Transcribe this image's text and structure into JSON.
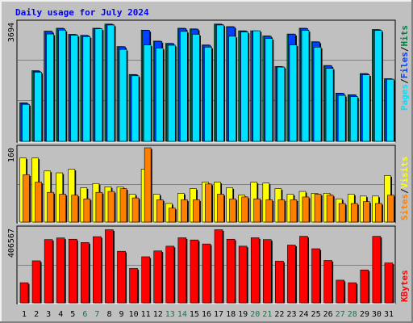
{
  "chart_data": {
    "type": "bar",
    "title": "Daily usage for July 2024",
    "categories": [
      "1",
      "2",
      "3",
      "4",
      "5",
      "6",
      "7",
      "8",
      "9",
      "10",
      "11",
      "12",
      "13",
      "14",
      "15",
      "16",
      "17",
      "18",
      "19",
      "20",
      "21",
      "22",
      "23",
      "24",
      "25",
      "26",
      "27",
      "28",
      "29",
      "30",
      "31"
    ],
    "weekend_days": [
      6,
      7,
      13,
      14,
      20,
      21,
      27,
      28
    ],
    "panels": [
      {
        "name": "hits-files-pages",
        "ymax_label": "3694",
        "ymax": 3694,
        "series": [
          {
            "name": "Hits",
            "color": "#008040",
            "values": [
              1200,
              2200,
              3430,
              3520,
              3330,
              3300,
              3520,
              3650,
              2950,
              2080,
              3460,
              3120,
              3050,
              3520,
              3500,
              3000,
              3650,
              3570,
              3440,
              3440,
              3280,
              2330,
              3340,
              3520,
              3100,
              2360,
              1500,
              1450,
              2110,
              3480,
              1950
            ]
          },
          {
            "name": "Files",
            "color": "#0040ff",
            "values": [
              1180,
              2180,
              3420,
              3510,
              3320,
              3290,
              3510,
              3640,
              2940,
              2070,
              3450,
              3110,
              3040,
              3510,
              3490,
              2990,
              3640,
              3560,
              3430,
              3430,
              3270,
              2320,
              3330,
              3510,
              3090,
              2350,
              1490,
              1440,
              2100,
              3470,
              1940
            ]
          },
          {
            "name": "Pages",
            "color": "#00e0ff",
            "values": [
              1150,
              2150,
              3340,
              3460,
              3300,
              3260,
              3500,
              3620,
              2860,
              2040,
              3000,
              2900,
              2990,
              3420,
              3330,
              2930,
              3620,
              3270,
              3400,
              3440,
              3200,
              2310,
              3000,
              3450,
              2930,
              2270,
              1430,
              1390,
              2070,
              3450,
              1930
            ]
          }
        ]
      },
      {
        "name": "visits-sites",
        "ymax_label": "160",
        "ymax": 160,
        "series": [
          {
            "name": "Visits",
            "color": "#ffff00",
            "values": [
              138,
              138,
              110,
              106,
              114,
              74,
              83,
              76,
              76,
              60,
              114,
              60,
              40,
              62,
              72,
              86,
              86,
              74,
              58,
              86,
              84,
              72,
              60,
              66,
              62,
              62,
              50,
              60,
              56,
              56,
              100
            ]
          },
          {
            "name": "Sites",
            "color": "#ff8000",
            "values": [
              102,
              86,
              64,
              60,
              58,
              50,
              64,
              66,
              72,
              52,
              160,
              48,
              30,
              48,
              48,
              82,
              60,
              50,
              54,
              50,
              48,
              48,
              48,
              54,
              60,
              58,
              40,
              40,
              44,
              40,
              58
            ]
          }
        ]
      },
      {
        "name": "kbytes",
        "ymax_label": "406567",
        "ymax": 406567,
        "series": [
          {
            "name": "KBytes",
            "color": "#ff0000",
            "values": [
              110000,
              230000,
              346000,
              355000,
              348000,
              330000,
              362000,
              400000,
              282000,
              188000,
              252000,
              284000,
              310000,
              356000,
              344000,
              322000,
              400000,
              348000,
              310000,
              356000,
              346000,
              228000,
              316000,
              364000,
              296000,
              232000,
              124000,
              110000,
              180000,
              364000,
              218000
            ]
          }
        ]
      }
    ],
    "right_labels": {
      "panel1": [
        "Pages",
        "/",
        "Files",
        "/",
        "Hits"
      ],
      "panel2": [
        "Sites",
        "/",
        "Visits"
      ],
      "panel3": [
        "KBytes"
      ]
    }
  },
  "colors": {
    "background": "#c0c0c0",
    "title": "#0000ff",
    "weekday": "#000000",
    "weekend": "#008040",
    "grid": "#808080",
    "bar_shadow": "#000000"
  }
}
